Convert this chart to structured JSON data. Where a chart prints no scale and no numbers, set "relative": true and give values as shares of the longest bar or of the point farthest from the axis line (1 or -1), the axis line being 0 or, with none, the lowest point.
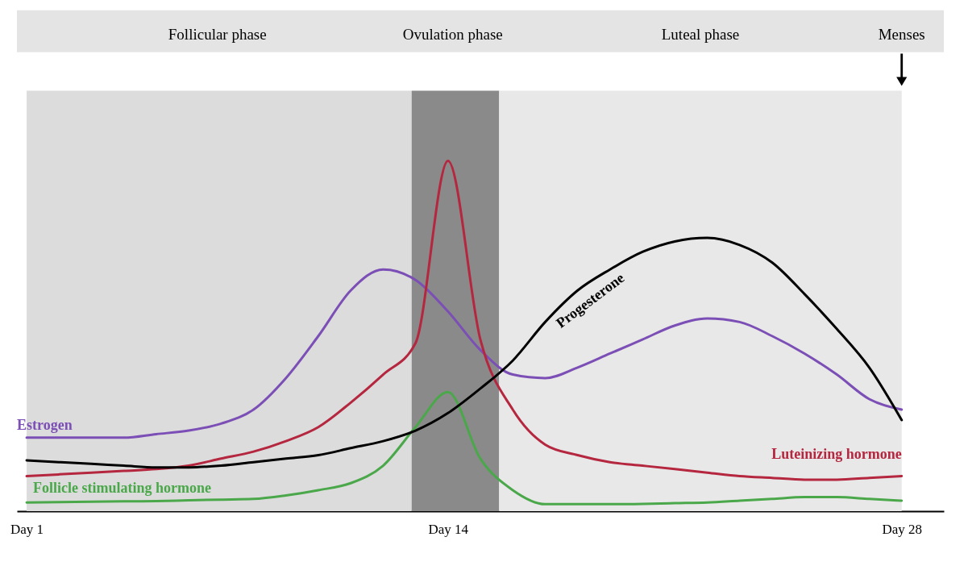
{
  "chart_data": {
    "type": "line",
    "relative": true,
    "grid": false,
    "categories": [
      "Day 1",
      null,
      null,
      null,
      null,
      null,
      null,
      null,
      null,
      null,
      null,
      null,
      null,
      "Day 14",
      null,
      null,
      null,
      null,
      null,
      null,
      null,
      null,
      null,
      null,
      null,
      null,
      null,
      "Day 28"
    ],
    "series": [
      {
        "name": "Estrogen",
        "color": "#7b4fb5",
        "values": [
          0.21,
          0.21,
          0.21,
          0.21,
          0.22,
          0.23,
          0.25,
          0.29,
          0.38,
          0.5,
          0.63,
          0.69,
          0.66,
          0.57,
          0.46,
          0.39,
          0.38,
          0.41,
          0.45,
          0.49,
          0.53,
          0.55,
          0.54,
          0.5,
          0.45,
          0.39,
          0.32,
          0.29
        ]
      },
      {
        "name": "Luteinizing hormone",
        "color": "#b5263f",
        "values": [
          0.1,
          0.105,
          0.11,
          0.115,
          0.12,
          0.13,
          0.15,
          0.17,
          0.2,
          0.24,
          0.31,
          0.39,
          0.48,
          1.0,
          0.49,
          0.29,
          0.19,
          0.16,
          0.14,
          0.13,
          0.12,
          0.11,
          0.1,
          0.095,
          0.09,
          0.09,
          0.095,
          0.1
        ]
      },
      {
        "name": "Follicle stimulating hormone",
        "color": "#4aa84a",
        "values": [
          0.025,
          0.026,
          0.027,
          0.028,
          0.029,
          0.031,
          0.033,
          0.035,
          0.045,
          0.06,
          0.08,
          0.13,
          0.24,
          0.34,
          0.15,
          0.06,
          0.02,
          0.02,
          0.02,
          0.021,
          0.023,
          0.025,
          0.03,
          0.035,
          0.04,
          0.04,
          0.035,
          0.03
        ]
      },
      {
        "name": "Progesterone",
        "color": "#000000",
        "values": [
          0.145,
          0.14,
          0.135,
          0.13,
          0.125,
          0.125,
          0.13,
          0.14,
          0.15,
          0.16,
          0.18,
          0.2,
          0.23,
          0.28,
          0.35,
          0.43,
          0.54,
          0.63,
          0.69,
          0.74,
          0.77,
          0.78,
          0.76,
          0.71,
          0.62,
          0.52,
          0.41,
          0.26
        ]
      }
    ],
    "annotations": [
      "Follicular phase",
      "Ovulation phase",
      "Luteal phase",
      "Menses"
    ]
  }
}
